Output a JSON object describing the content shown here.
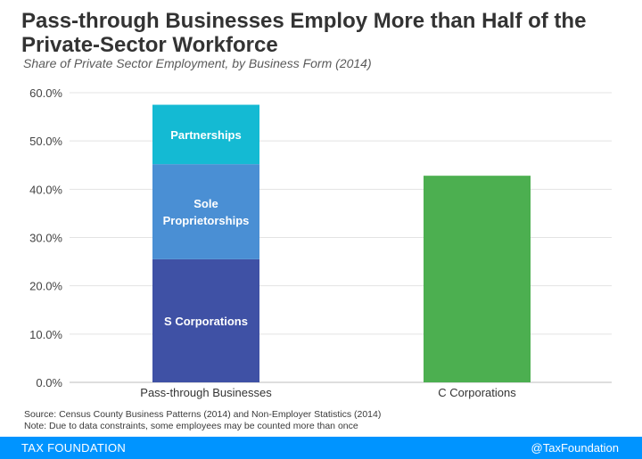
{
  "header": {
    "title": "Pass-through Businesses Employ More than Half of the Private-Sector Workforce",
    "subtitle": "Share of Private Sector Employment, by Business Form (2014)"
  },
  "chart_data": {
    "type": "bar",
    "stacked": true,
    "title": "Pass-through Businesses Employ More than Half of the Private-Sector Workforce",
    "subtitle": "Share of Private Sector Employment, by Business Form (2014)",
    "xlabel": "",
    "ylabel": "",
    "ylim": [
      0,
      60
    ],
    "yticks": [
      0,
      10,
      20,
      30,
      40,
      50,
      60
    ],
    "ytick_labels": [
      "0.0%",
      "10.0%",
      "20.0%",
      "30.0%",
      "40.0%",
      "50.0%",
      "60.0%"
    ],
    "grid": true,
    "categories": [
      "Pass-through Businesses",
      "C Corporations"
    ],
    "series": [
      {
        "name": "S Corporations",
        "label_lines": [
          "S Corporations"
        ],
        "color": "#3f51a5",
        "values": [
          25.5,
          0
        ]
      },
      {
        "name": "Sole Proprietorships",
        "label_lines": [
          "Sole",
          "Proprietorships"
        ],
        "color": "#4a8fd4",
        "values": [
          19.7,
          0
        ]
      },
      {
        "name": "Partnerships",
        "label_lines": [
          "Partnerships"
        ],
        "color": "#14bad3",
        "values": [
          12.3,
          0
        ]
      },
      {
        "name": "C Corporations",
        "label_lines": [],
        "color": "#4caf50",
        "values": [
          0,
          42.8
        ]
      }
    ]
  },
  "notes": {
    "source": "Source: Census County Business Patterns (2014) and Non-Employer Statistics (2014)",
    "note": "Note: Due to data constraints, some employees may be counted more than once"
  },
  "footer": {
    "left": "TAX FOUNDATION",
    "right": "@TaxFoundation",
    "color": "#0094ff"
  }
}
